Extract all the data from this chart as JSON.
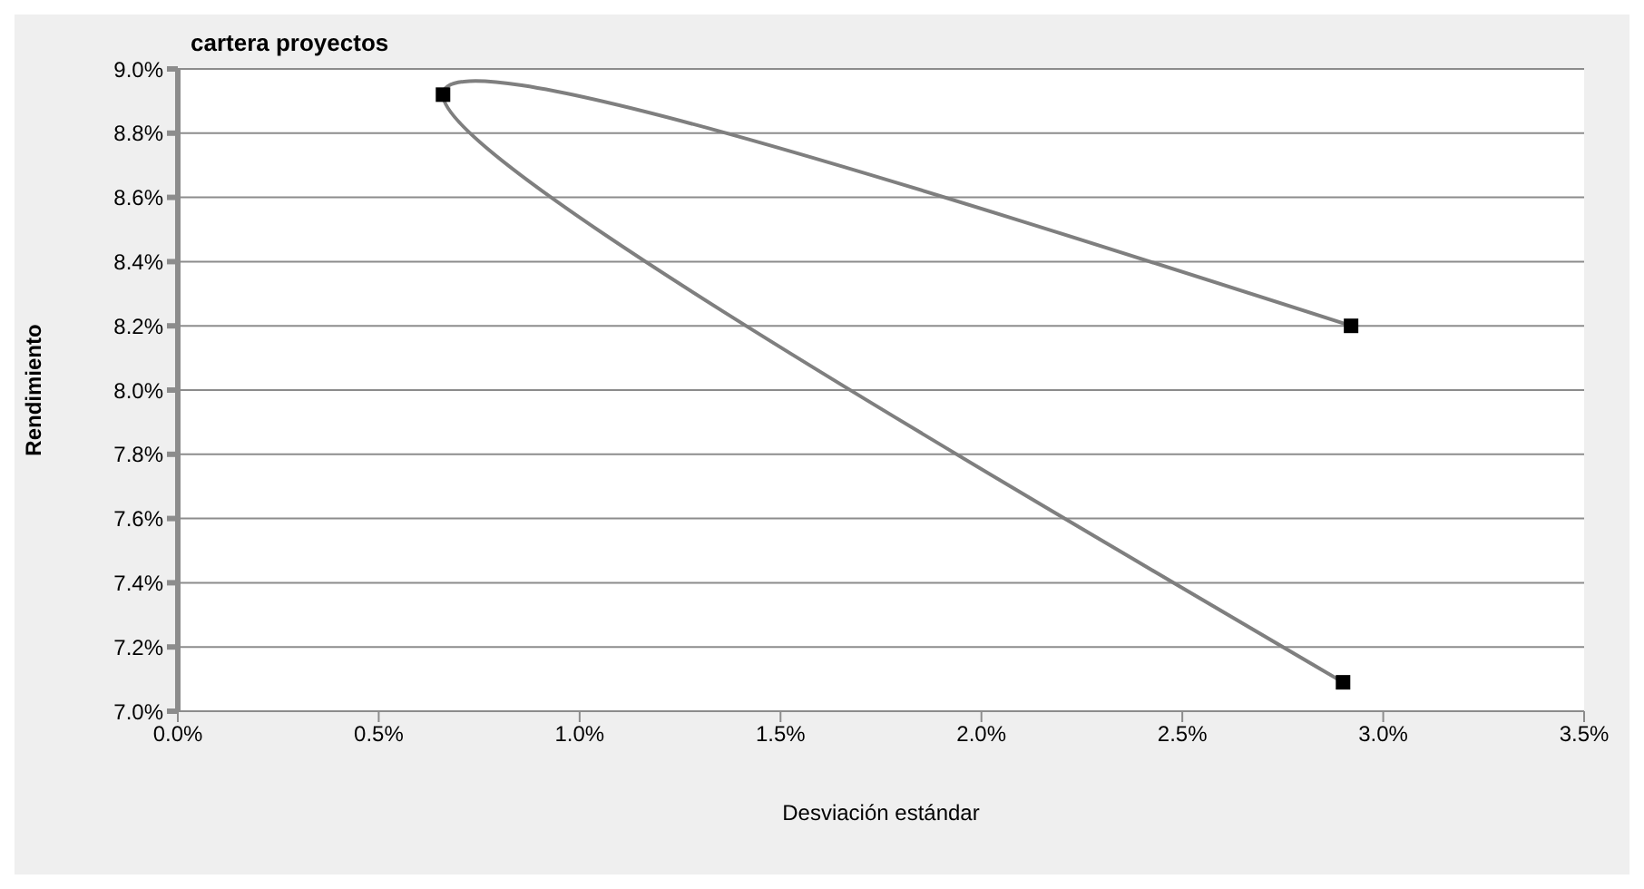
{
  "chart_data": {
    "type": "line",
    "title": "cartera proyectos",
    "xlabel": "Desviación estándar",
    "ylabel": "Rendimiento",
    "x": [
      2.92,
      0.66,
      2.9
    ],
    "series": [
      {
        "color": "#7f7f7f",
        "colors": [
          "#000000",
          "#000000",
          "#000000"
        ],
        "values": [
          8.2,
          8.92,
          7.09
        ]
      }
    ],
    "xlim": [
      0,
      3.5
    ],
    "xticks": [
      {
        "value": 0,
        "label": "0.0%"
      },
      {
        "value": 0.5,
        "label": "0.5%"
      },
      {
        "value": 1,
        "label": "1.0%"
      },
      {
        "value": 1.5,
        "label": "1.5%"
      },
      {
        "value": 2,
        "label": "2.0%"
      },
      {
        "value": 2.5,
        "label": "2.5%"
      },
      {
        "value": 3,
        "label": "3.0%"
      },
      {
        "value": 3.5,
        "label": "3.5%"
      }
    ],
    "ylim": [
      7,
      9
    ],
    "yticks": [
      {
        "value": 7,
        "label": "7.0%"
      },
      {
        "value": 7.2,
        "label": "7.2%"
      },
      {
        "value": 7.4,
        "label": "7.4%"
      },
      {
        "value": 7.6,
        "label": "7.6%"
      },
      {
        "value": 7.8,
        "label": "7.8%"
      },
      {
        "value": 8,
        "label": "8.0%"
      },
      {
        "value": 8.2,
        "label": "8.2%"
      },
      {
        "value": 8.4,
        "label": "8.4%"
      },
      {
        "value": 8.6,
        "label": "8.6%"
      },
      {
        "value": 8.8,
        "label": "8.8%"
      },
      {
        "value": 9,
        "label": "9.0%"
      }
    ],
    "grid": "y",
    "marker": "square",
    "line_style": "solid",
    "legend": false
  }
}
